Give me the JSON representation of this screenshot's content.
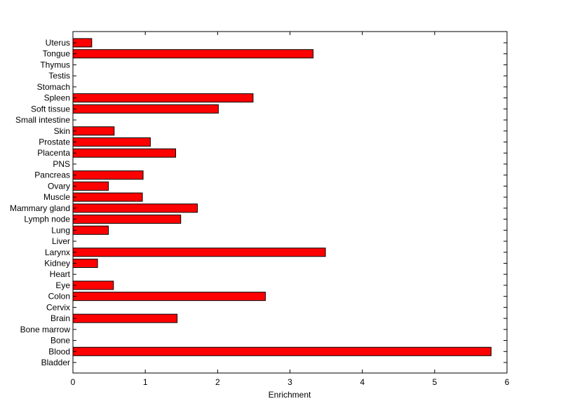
{
  "chart_data": {
    "type": "bar",
    "orientation": "horizontal",
    "title": "",
    "xlabel": "Enrichment",
    "ylabel": "",
    "xlim": [
      0,
      6
    ],
    "xticks": [
      "0",
      "1",
      "2",
      "3",
      "4",
      "5",
      "6"
    ],
    "grid": false,
    "bar_color": "#ff0000",
    "bar_edge_color": "#000000",
    "categories": [
      "Bladder",
      "Blood",
      "Bone",
      "Bone marrow",
      "Brain",
      "Cervix",
      "Colon",
      "Eye",
      "Heart",
      "Kidney",
      "Larynx",
      "Liver",
      "Lung",
      "Lymph node",
      "Mammary gland",
      "Muscle",
      "Ovary",
      "Pancreas",
      "PNS",
      "Placenta",
      "Prostate",
      "Skin",
      "Small intestine",
      "Soft tissue",
      "Spleen",
      "Stomach",
      "Testis",
      "Thymus",
      "Tongue",
      "Uterus"
    ],
    "values": [
      0,
      5.78,
      0,
      0,
      1.44,
      0,
      2.66,
      0.56,
      0,
      0.34,
      3.49,
      0,
      0.49,
      1.49,
      1.72,
      0.96,
      0.49,
      0.97,
      0,
      1.42,
      1.07,
      0.57,
      0,
      2.01,
      2.49,
      0,
      0,
      0,
      3.32,
      0.26
    ]
  }
}
